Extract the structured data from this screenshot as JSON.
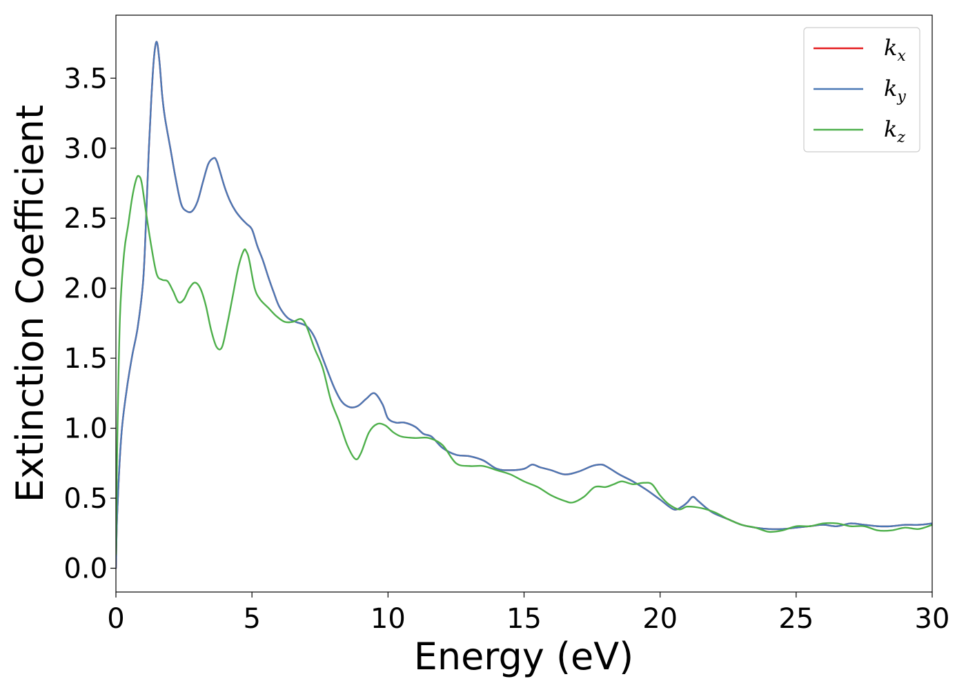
{
  "chart_data": {
    "type": "line",
    "title": "",
    "xlabel": "Energy (eV)",
    "ylabel": "Extinction Coefficient",
    "xlim": [
      0,
      30
    ],
    "ylim": [
      -0.17,
      3.95
    ],
    "xticks": [
      0,
      5,
      10,
      15,
      20,
      25,
      30
    ],
    "xtick_labels": [
      "0",
      "5",
      "10",
      "15",
      "20",
      "25",
      "30"
    ],
    "yticks": [
      0.0,
      0.5,
      1.0,
      1.5,
      2.0,
      2.5,
      3.0,
      3.5
    ],
    "ytick_labels": [
      "0.0",
      "0.5",
      "1.0",
      "1.5",
      "2.0",
      "2.5",
      "3.0",
      "3.5"
    ],
    "grid": false,
    "legend_position": "top-right",
    "series": [
      {
        "name": "k",
        "subscript": "x",
        "color": "#e41a1c",
        "x": [
          0,
          0.05,
          0.2,
          0.4,
          0.6,
          0.8,
          1.0,
          1.1,
          1.2,
          1.3,
          1.4,
          1.5,
          1.6,
          1.7,
          1.8,
          2.0,
          2.2,
          2.4,
          2.6,
          2.8,
          3.0,
          3.2,
          3.4,
          3.6,
          3.7,
          3.8,
          4.0,
          4.2,
          4.4,
          4.6,
          4.8,
          5.0,
          5.2,
          5.4,
          5.6,
          5.8,
          6.0,
          6.3,
          6.6,
          7.0,
          7.3,
          7.6,
          8.0,
          8.3,
          8.6,
          8.9,
          9.2,
          9.5,
          9.8,
          10.0,
          10.3,
          10.6,
          11.0,
          11.3,
          11.6,
          12.0,
          12.5,
          13.0,
          13.5,
          14.0,
          14.5,
          15.0,
          15.3,
          15.6,
          16.0,
          16.5,
          17.0,
          17.5,
          17.8,
          18.0,
          18.5,
          19.0,
          19.5,
          20.0,
          20.5,
          20.8,
          21.0,
          21.2,
          21.4,
          21.7,
          22.0,
          22.5,
          23.0,
          23.5,
          24.0,
          24.5,
          25.0,
          25.5,
          26.0,
          26.5,
          27.0,
          27.5,
          28.0,
          28.5,
          29.0,
          29.5,
          30.0
        ],
        "y": [
          0.0,
          0.4,
          0.95,
          1.28,
          1.52,
          1.72,
          2.05,
          2.45,
          2.95,
          3.35,
          3.65,
          3.76,
          3.62,
          3.38,
          3.22,
          3.0,
          2.78,
          2.6,
          2.55,
          2.55,
          2.62,
          2.76,
          2.89,
          2.93,
          2.91,
          2.85,
          2.72,
          2.62,
          2.55,
          2.5,
          2.46,
          2.42,
          2.3,
          2.2,
          2.08,
          1.97,
          1.87,
          1.79,
          1.76,
          1.73,
          1.65,
          1.5,
          1.3,
          1.19,
          1.15,
          1.16,
          1.21,
          1.25,
          1.17,
          1.07,
          1.04,
          1.04,
          1.01,
          0.96,
          0.94,
          0.86,
          0.81,
          0.8,
          0.77,
          0.71,
          0.7,
          0.71,
          0.74,
          0.72,
          0.7,
          0.67,
          0.69,
          0.73,
          0.74,
          0.73,
          0.67,
          0.62,
          0.56,
          0.49,
          0.42,
          0.44,
          0.47,
          0.51,
          0.48,
          0.43,
          0.39,
          0.35,
          0.31,
          0.29,
          0.28,
          0.28,
          0.29,
          0.3,
          0.31,
          0.3,
          0.32,
          0.31,
          0.3,
          0.3,
          0.31,
          0.31,
          0.32
        ]
      },
      {
        "name": "k",
        "subscript": "y",
        "color": "#4a78b5",
        "x": [
          0,
          0.05,
          0.2,
          0.4,
          0.6,
          0.8,
          1.0,
          1.1,
          1.2,
          1.3,
          1.4,
          1.5,
          1.6,
          1.7,
          1.8,
          2.0,
          2.2,
          2.4,
          2.6,
          2.8,
          3.0,
          3.2,
          3.4,
          3.6,
          3.7,
          3.8,
          4.0,
          4.2,
          4.4,
          4.6,
          4.8,
          5.0,
          5.2,
          5.4,
          5.6,
          5.8,
          6.0,
          6.3,
          6.6,
          7.0,
          7.3,
          7.6,
          8.0,
          8.3,
          8.6,
          8.9,
          9.2,
          9.5,
          9.8,
          10.0,
          10.3,
          10.6,
          11.0,
          11.3,
          11.6,
          12.0,
          12.5,
          13.0,
          13.5,
          14.0,
          14.5,
          15.0,
          15.3,
          15.6,
          16.0,
          16.5,
          17.0,
          17.5,
          17.8,
          18.0,
          18.5,
          19.0,
          19.5,
          20.0,
          20.5,
          20.8,
          21.0,
          21.2,
          21.4,
          21.7,
          22.0,
          22.5,
          23.0,
          23.5,
          24.0,
          24.5,
          25.0,
          25.5,
          26.0,
          26.5,
          27.0,
          27.5,
          28.0,
          28.5,
          29.0,
          29.5,
          30.0
        ],
        "y": [
          0.0,
          0.4,
          0.95,
          1.28,
          1.52,
          1.72,
          2.05,
          2.45,
          2.95,
          3.35,
          3.65,
          3.76,
          3.62,
          3.38,
          3.22,
          3.0,
          2.78,
          2.6,
          2.55,
          2.55,
          2.62,
          2.76,
          2.89,
          2.93,
          2.91,
          2.85,
          2.72,
          2.62,
          2.55,
          2.5,
          2.46,
          2.42,
          2.3,
          2.2,
          2.08,
          1.97,
          1.87,
          1.79,
          1.76,
          1.73,
          1.65,
          1.5,
          1.3,
          1.19,
          1.15,
          1.16,
          1.21,
          1.25,
          1.17,
          1.07,
          1.04,
          1.04,
          1.01,
          0.96,
          0.94,
          0.86,
          0.81,
          0.8,
          0.77,
          0.71,
          0.7,
          0.71,
          0.74,
          0.72,
          0.7,
          0.67,
          0.69,
          0.73,
          0.74,
          0.73,
          0.67,
          0.62,
          0.56,
          0.49,
          0.42,
          0.44,
          0.47,
          0.51,
          0.48,
          0.43,
          0.39,
          0.35,
          0.31,
          0.29,
          0.28,
          0.28,
          0.29,
          0.3,
          0.31,
          0.3,
          0.32,
          0.31,
          0.3,
          0.3,
          0.31,
          0.31,
          0.32
        ]
      },
      {
        "name": "k",
        "subscript": "z",
        "color": "#4daf4a",
        "x": [
          0,
          0.05,
          0.15,
          0.3,
          0.45,
          0.6,
          0.75,
          0.85,
          0.95,
          1.1,
          1.3,
          1.5,
          1.7,
          1.9,
          2.1,
          2.3,
          2.5,
          2.7,
          2.9,
          3.1,
          3.3,
          3.5,
          3.7,
          3.9,
          4.1,
          4.3,
          4.5,
          4.7,
          4.8,
          4.9,
          5.1,
          5.3,
          5.6,
          5.9,
          6.2,
          6.5,
          6.8,
          7.0,
          7.3,
          7.6,
          7.9,
          8.2,
          8.5,
          8.8,
          9.0,
          9.3,
          9.6,
          9.9,
          10.2,
          10.5,
          11.0,
          11.5,
          12.0,
          12.5,
          13.0,
          13.5,
          14.0,
          14.5,
          15.0,
          15.5,
          16.0,
          16.5,
          16.8,
          17.2,
          17.6,
          18.0,
          18.3,
          18.6,
          19.0,
          19.4,
          19.7,
          20.0,
          20.3,
          20.7,
          21.0,
          21.5,
          22.0,
          22.5,
          23.0,
          23.5,
          24.0,
          24.5,
          25.0,
          25.5,
          26.0,
          26.5,
          27.0,
          27.5,
          28.0,
          28.5,
          29.0,
          29.5,
          30.0
        ],
        "y": [
          0.1,
          0.9,
          1.8,
          2.25,
          2.45,
          2.65,
          2.78,
          2.8,
          2.75,
          2.55,
          2.3,
          2.1,
          2.06,
          2.05,
          1.98,
          1.9,
          1.92,
          2.0,
          2.04,
          2.0,
          1.88,
          1.7,
          1.58,
          1.58,
          1.75,
          1.95,
          2.15,
          2.27,
          2.26,
          2.2,
          2.0,
          1.92,
          1.86,
          1.8,
          1.76,
          1.76,
          1.78,
          1.73,
          1.57,
          1.43,
          1.2,
          1.05,
          0.88,
          0.78,
          0.82,
          0.97,
          1.03,
          1.02,
          0.97,
          0.94,
          0.93,
          0.93,
          0.88,
          0.75,
          0.73,
          0.73,
          0.7,
          0.67,
          0.62,
          0.58,
          0.52,
          0.48,
          0.47,
          0.51,
          0.58,
          0.58,
          0.6,
          0.62,
          0.6,
          0.61,
          0.6,
          0.52,
          0.46,
          0.42,
          0.44,
          0.43,
          0.4,
          0.35,
          0.31,
          0.29,
          0.26,
          0.27,
          0.3,
          0.3,
          0.32,
          0.32,
          0.3,
          0.3,
          0.27,
          0.27,
          0.29,
          0.28,
          0.31
        ]
      }
    ]
  }
}
